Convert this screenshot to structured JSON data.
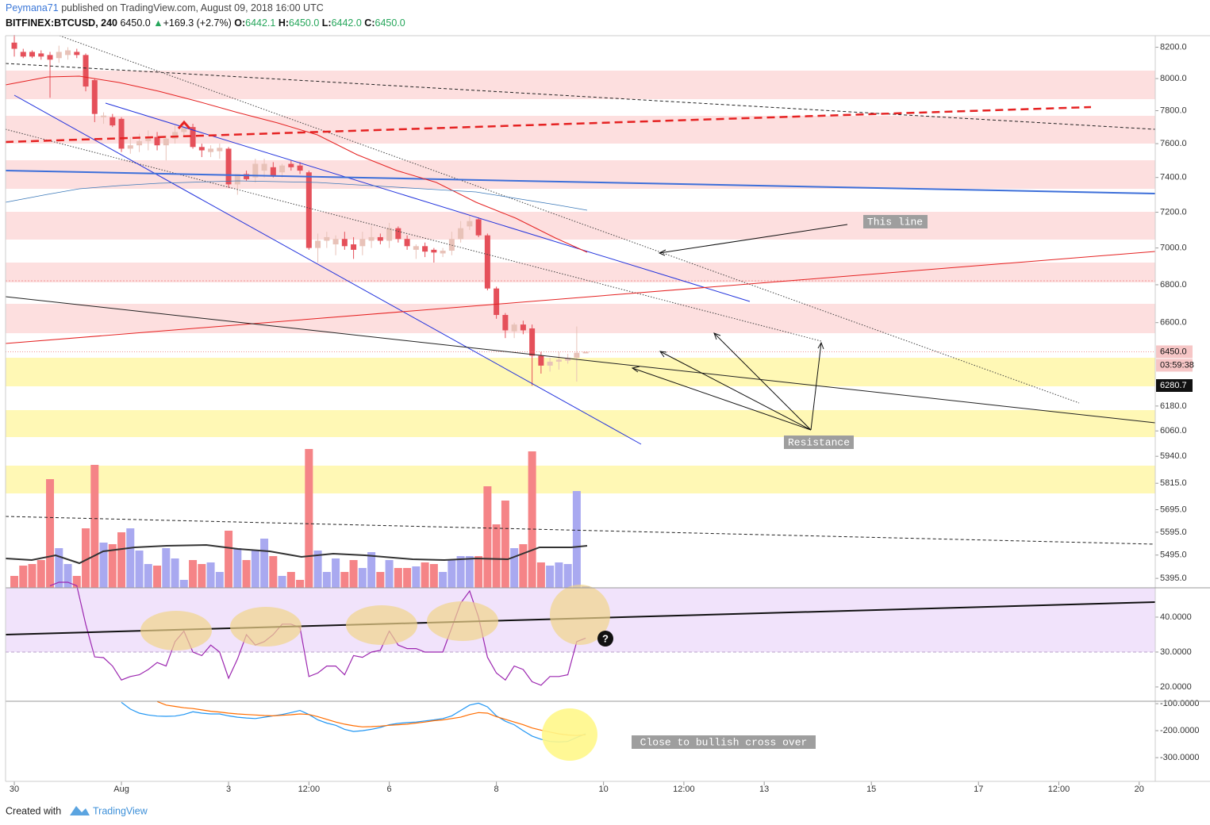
{
  "header": {
    "author": "Peymana71",
    "published": "published on TradingView.com, August 09, 2018 16:00 UTC",
    "symbol": "BITFINEX:BTCUSD, 240",
    "last": "6450.0",
    "arrow": "▲",
    "change": "+169.3 (+2.7%)",
    "open_label": "O:",
    "open": "6442.1",
    "high_label": "H:",
    "high": "6450.0",
    "low_label": "L:",
    "low": "6442.0",
    "close_label": "C:",
    "close": "6450.0"
  },
  "annotations": {
    "this_line": "This line",
    "resistance": "Resistance",
    "cross": "Close to bullish cross over",
    "question": "?"
  },
  "footer": {
    "created": "Created with",
    "brand": "TradingView"
  },
  "chart_data": [
    {
      "type": "candlestick",
      "log_scale": true,
      "ylim": [
        5355,
        8275
      ],
      "xlim": [
        -0.98,
        127.8
      ],
      "up_color": "#e8c2b8",
      "down_color": "#e5505a",
      "volume_up_color": "#a9a9f0",
      "volume_down_color": "#f58487",
      "yticks": [
        {
          "value": 8200,
          "label": "8200.0"
        },
        {
          "value": 8000,
          "label": "8000.0"
        },
        {
          "value": 7800,
          "label": "7800.0"
        },
        {
          "value": 7600,
          "label": "7600.0"
        },
        {
          "value": 7400,
          "label": "7400.0"
        },
        {
          "value": 7200,
          "label": "7200.0"
        },
        {
          "value": 7000,
          "label": "7000.0"
        },
        {
          "value": 6800,
          "label": "6800.0"
        },
        {
          "value": 6600,
          "label": "6600.0"
        },
        {
          "value": 6180,
          "label": "6180.0"
        },
        {
          "value": 6060,
          "label": "6060.0"
        },
        {
          "value": 5940,
          "label": "5940.0"
        },
        {
          "value": 5815,
          "label": "5815.0"
        },
        {
          "value": 5695,
          "label": "5695.0"
        },
        {
          "value": 5595,
          "label": "5595.0"
        },
        {
          "value": 5495,
          "label": "5495.0"
        },
        {
          "value": 5395,
          "label": "5395.0"
        }
      ],
      "price_labels": [
        {
          "value": 6450,
          "label": "6450.0"
        },
        {
          "value": 6280.7,
          "label": "6280.7"
        }
      ],
      "countdown": "03:59:38",
      "xticks": [
        {
          "value": 0,
          "label": "30"
        },
        {
          "value": 12,
          "label": "Aug"
        },
        {
          "value": 24,
          "label": "3"
        },
        {
          "value": 33,
          "label": "12:00"
        },
        {
          "value": 42,
          "label": "6"
        },
        {
          "value": 54,
          "label": "8"
        },
        {
          "value": 66,
          "label": "10"
        },
        {
          "value": 75,
          "label": "12:00"
        },
        {
          "value": 84,
          "label": "13"
        },
        {
          "value": 96,
          "label": "15"
        },
        {
          "value": 108,
          "label": "17"
        },
        {
          "value": 117,
          "label": "12:00"
        },
        {
          "value": 126,
          "label": "20"
        }
      ],
      "open": [
        8230,
        8170,
        8170,
        8160,
        8150,
        8130,
        8150,
        8170,
        8150,
        7990,
        7760,
        7760,
        7750,
        7570,
        7590,
        7615,
        7640,
        7590,
        7630,
        7670,
        7700,
        7580,
        7550,
        7555,
        7570,
        7360,
        7420,
        7400,
        7440,
        7460,
        7430,
        7480,
        7470,
        7430,
        7000,
        7040,
        7020,
        7050,
        7020,
        7010,
        7040,
        7060,
        7040,
        7110,
        7050,
        6990,
        7010,
        6990,
        6970,
        6985,
        7050,
        7120,
        7160,
        7070,
        6780,
        6640,
        6555,
        6590,
        6570,
        6430,
        6380,
        6400,
        6405,
        6420,
        6442.1
      ],
      "high": [
        8280,
        8190,
        8180,
        8180,
        8170,
        8210,
        8200,
        8190,
        8160,
        8000,
        7790,
        7780,
        7760,
        7640,
        7660,
        7680,
        7670,
        7650,
        7710,
        7720,
        7720,
        7600,
        7590,
        7600,
        7580,
        7420,
        7440,
        7510,
        7510,
        7490,
        7480,
        7500,
        7490,
        7440,
        7080,
        7090,
        7070,
        7090,
        7060,
        7090,
        7120,
        7080,
        7140,
        7120,
        7070,
        7020,
        7030,
        7000,
        7000,
        7090,
        7150,
        7180,
        7170,
        7080,
        6790,
        6650,
        6600,
        6610,
        6590,
        6450,
        6420,
        6450,
        6440,
        6580,
        6450
      ],
      "low": [
        8140,
        8130,
        8130,
        8120,
        7880,
        8100,
        8120,
        8130,
        7920,
        7730,
        7720,
        7700,
        7550,
        7540,
        7550,
        7560,
        7560,
        7500,
        7600,
        7640,
        7570,
        7520,
        7520,
        7510,
        7340,
        7300,
        7380,
        7370,
        7400,
        7400,
        7400,
        7440,
        7420,
        6990,
        6920,
        7000,
        6960,
        6990,
        6940,
        6960,
        7000,
        7020,
        7000,
        7030,
        6990,
        6940,
        6950,
        6920,
        6950,
        6960,
        7030,
        7100,
        7060,
        6770,
        6620,
        6520,
        6520,
        6540,
        6280,
        6340,
        6350,
        6360,
        6390,
        6300,
        6442
      ],
      "close": [
        8190,
        8140,
        8140,
        8140,
        8120,
        8170,
        8180,
        8150,
        7950,
        7780,
        7770,
        7710,
        7570,
        7590,
        7615,
        7640,
        7590,
        7630,
        7670,
        7700,
        7580,
        7560,
        7570,
        7575,
        7360,
        7420,
        7390,
        7480,
        7480,
        7410,
        7470,
        7460,
        7440,
        7000,
        7040,
        7060,
        7050,
        7010,
        6990,
        7050,
        7060,
        7040,
        7110,
        7050,
        7010,
        7010,
        6980,
        6975,
        6985,
        7050,
        7110,
        7150,
        7070,
        6780,
        6640,
        6560,
        6590,
        6560,
        6430,
        6380,
        6400,
        6410,
        6420,
        6445,
        6450
      ],
      "volume": [
        15,
        28,
        30,
        35,
        137,
        50,
        30,
        15,
        75,
        155,
        57,
        55,
        70,
        75,
        47,
        30,
        28,
        50,
        37,
        10,
        35,
        30,
        32,
        20,
        72,
        50,
        35,
        47,
        62,
        40,
        15,
        20,
        10,
        175,
        47,
        20,
        37,
        20,
        35,
        25,
        45,
        20,
        35,
        25,
        25,
        27,
        32,
        30,
        20,
        35,
        40,
        40,
        40,
        128,
        80,
        110,
        50,
        55,
        172,
        32,
        28,
        32,
        30,
        122,
        2
      ]
    },
    {
      "type": "line",
      "ylim": [
        15.9,
        48.4
      ],
      "yticks": [
        {
          "value": 40,
          "label": "40.0000"
        },
        {
          "value": 30,
          "label": "30.0000"
        },
        {
          "value": 20,
          "label": "20.0000"
        }
      ],
      "series": [
        {
          "color": "#9c27b0",
          "values": [
            null,
            null,
            null,
            null,
            49,
            50,
            50,
            49,
            38,
            28.6,
            28.4,
            26,
            22,
            23,
            23.5,
            25,
            27,
            26,
            33,
            36,
            30,
            29,
            32,
            30,
            22.5,
            28,
            35,
            32,
            33,
            35,
            38,
            38,
            37,
            23,
            24,
            26,
            26,
            23.5,
            29,
            28.5,
            30,
            30.5,
            36,
            32,
            31,
            31,
            30,
            30,
            30,
            37,
            44,
            47.5,
            40,
            28.5,
            24,
            22,
            26,
            25,
            21.5,
            20.5,
            23,
            23,
            23.5,
            33,
            34
          ]
        }
      ]
    },
    {
      "type": "line",
      "ylim": [
        -388,
        -91
      ],
      "yticks": [
        {
          "value": -100,
          "label": "-100.0000"
        },
        {
          "value": -200,
          "label": "-200.0000"
        },
        {
          "value": -300,
          "label": "-300.0000"
        }
      ],
      "series": [
        {
          "color": "#2196f3",
          "values": [
            null,
            null,
            null,
            null,
            null,
            null,
            null,
            null,
            null,
            null,
            null,
            null,
            -95,
            -120,
            -135,
            -142,
            -146,
            -147,
            -146,
            -140,
            -130,
            -135,
            -138,
            -138,
            -145,
            -150,
            -153,
            -155,
            -150,
            -145,
            -140,
            -133,
            -125,
            -140,
            -160,
            -172,
            -180,
            -195,
            -203,
            -200,
            -195,
            -188,
            -178,
            -173,
            -170,
            -168,
            -164,
            -160,
            -155,
            -145,
            -125,
            -105,
            -98,
            -112,
            -145,
            -165,
            -178,
            -200,
            -220,
            -232,
            -240,
            -242,
            -240,
            -225,
            -212
          ]
        },
        {
          "color": "#ff6d00",
          "values": [
            null,
            null,
            null,
            null,
            null,
            null,
            null,
            null,
            null,
            null,
            null,
            null,
            null,
            null,
            null,
            null,
            -92,
            -105,
            -110,
            -115,
            -118,
            -123,
            -128,
            -131,
            -135,
            -138,
            -140,
            -142,
            -144,
            -145,
            -143,
            -141,
            -138,
            -140,
            -148,
            -158,
            -168,
            -176,
            -182,
            -186,
            -185,
            -183,
            -180,
            -178,
            -176,
            -172,
            -168,
            -163,
            -160,
            -155,
            -150,
            -140,
            -133,
            -135,
            -148,
            -158,
            -168,
            -178,
            -190,
            -198,
            -205,
            -212,
            -216,
            -218,
            -215
          ]
        }
      ]
    }
  ]
}
